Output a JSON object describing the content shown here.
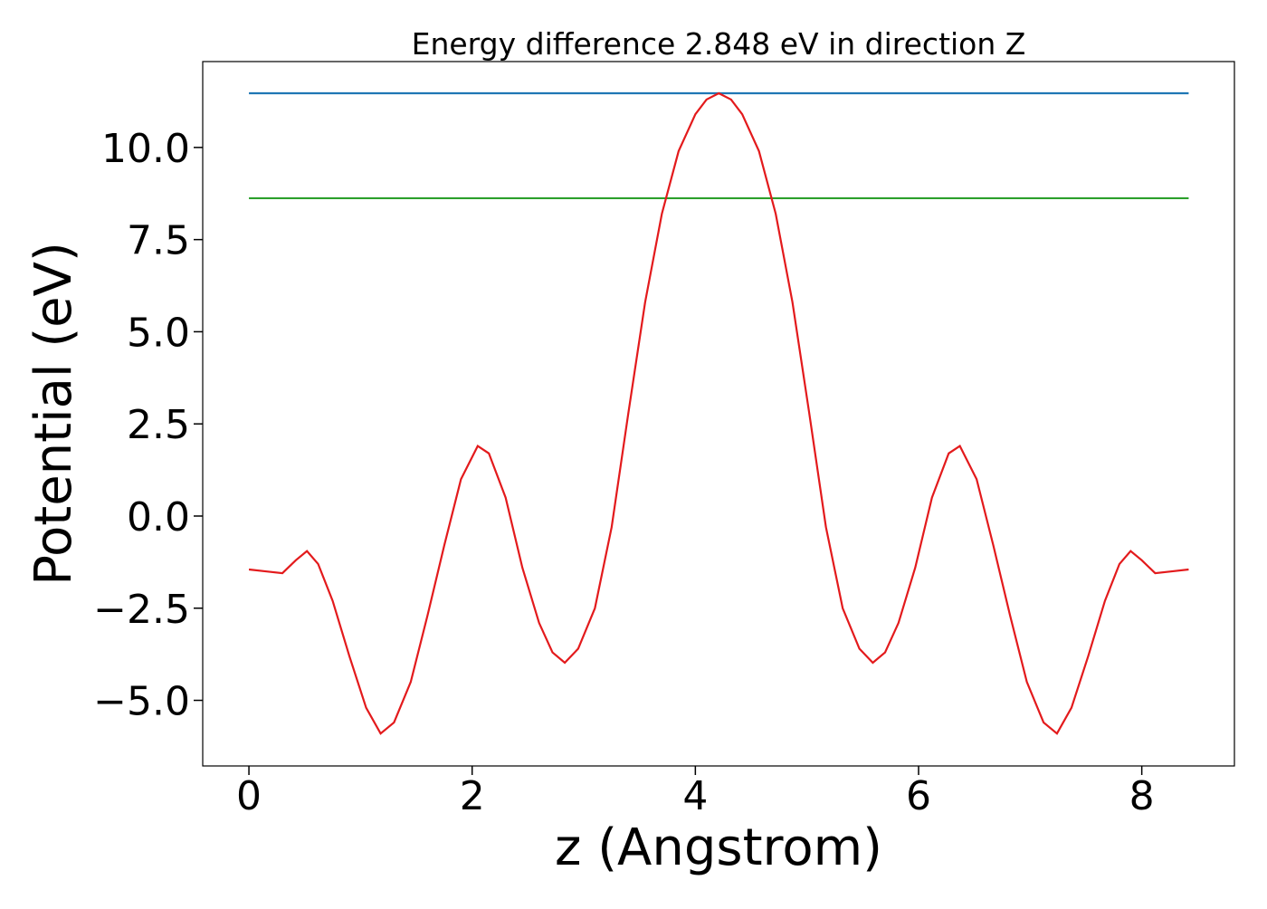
{
  "chart_data": {
    "type": "line",
    "title": "Energy difference 2.848 eV in direction Z",
    "x_label": "z (Angstrom)",
    "y_label": "Potential (eV)",
    "xlim": [
      -0.414,
      8.83
    ],
    "ylim": [
      -6.78,
      12.33
    ],
    "xticks": [
      0,
      2,
      4,
      6,
      8
    ],
    "yticks": [
      {
        "value": -5,
        "label": "−5.0"
      },
      {
        "value": -2.5,
        "label": "−2.5"
      },
      {
        "value": 0,
        "label": "0.0"
      },
      {
        "value": 2.5,
        "label": "2.5"
      },
      {
        "value": 5,
        "label": "5.0"
      },
      {
        "value": 7.5,
        "label": "7.5"
      },
      {
        "value": 10,
        "label": "10.0"
      }
    ],
    "grid": false,
    "series": [
      {
        "color": "#1f77b4",
        "x": [
          0,
          8.42
        ],
        "values": [
          11.47,
          11.47
        ]
      },
      {
        "color": "#2ca02c",
        "x": [
          0,
          8.42
        ],
        "values": [
          8.622,
          8.622
        ]
      },
      {
        "color": "#e31a1c",
        "x": [
          0,
          0.15,
          0.3,
          0.42,
          0.52,
          0.62,
          0.75,
          0.9,
          1.05,
          1.18,
          1.3,
          1.45,
          1.6,
          1.75,
          1.9,
          2.05,
          2.15,
          2.3,
          2.45,
          2.6,
          2.72,
          2.83,
          2.95,
          3.1,
          3.25,
          3.4,
          3.55,
          3.7,
          3.85,
          4.0,
          4.1,
          4.21,
          4.32,
          4.42,
          4.57,
          4.72,
          4.87,
          5.02,
          5.17,
          5.32,
          5.47,
          5.59,
          5.7,
          5.82,
          5.97,
          6.12,
          6.27,
          6.37,
          6.52,
          6.67,
          6.82,
          6.97,
          7.12,
          7.24,
          7.37,
          7.52,
          7.67,
          7.8,
          7.9,
          8.0,
          8.12,
          8.27,
          8.42
        ],
        "values": [
          -1.45,
          -1.5,
          -1.55,
          -1.2,
          -0.95,
          -1.3,
          -2.3,
          -3.8,
          -5.2,
          -5.9,
          -5.6,
          -4.5,
          -2.7,
          -0.8,
          1.0,
          1.9,
          1.7,
          0.5,
          -1.4,
          -2.9,
          -3.7,
          -3.98,
          -3.6,
          -2.5,
          -0.3,
          2.8,
          5.8,
          8.2,
          9.9,
          10.9,
          11.3,
          11.47,
          11.3,
          10.9,
          9.9,
          8.2,
          5.8,
          2.8,
          -0.3,
          -2.5,
          -3.6,
          -3.98,
          -3.7,
          -2.9,
          -1.4,
          0.5,
          1.7,
          1.9,
          1.0,
          -0.8,
          -2.7,
          -4.5,
          -5.6,
          -5.9,
          -5.2,
          -3.8,
          -2.3,
          -1.3,
          -0.95,
          -1.2,
          -1.55,
          -1.5,
          -1.45
        ]
      }
    ]
  }
}
